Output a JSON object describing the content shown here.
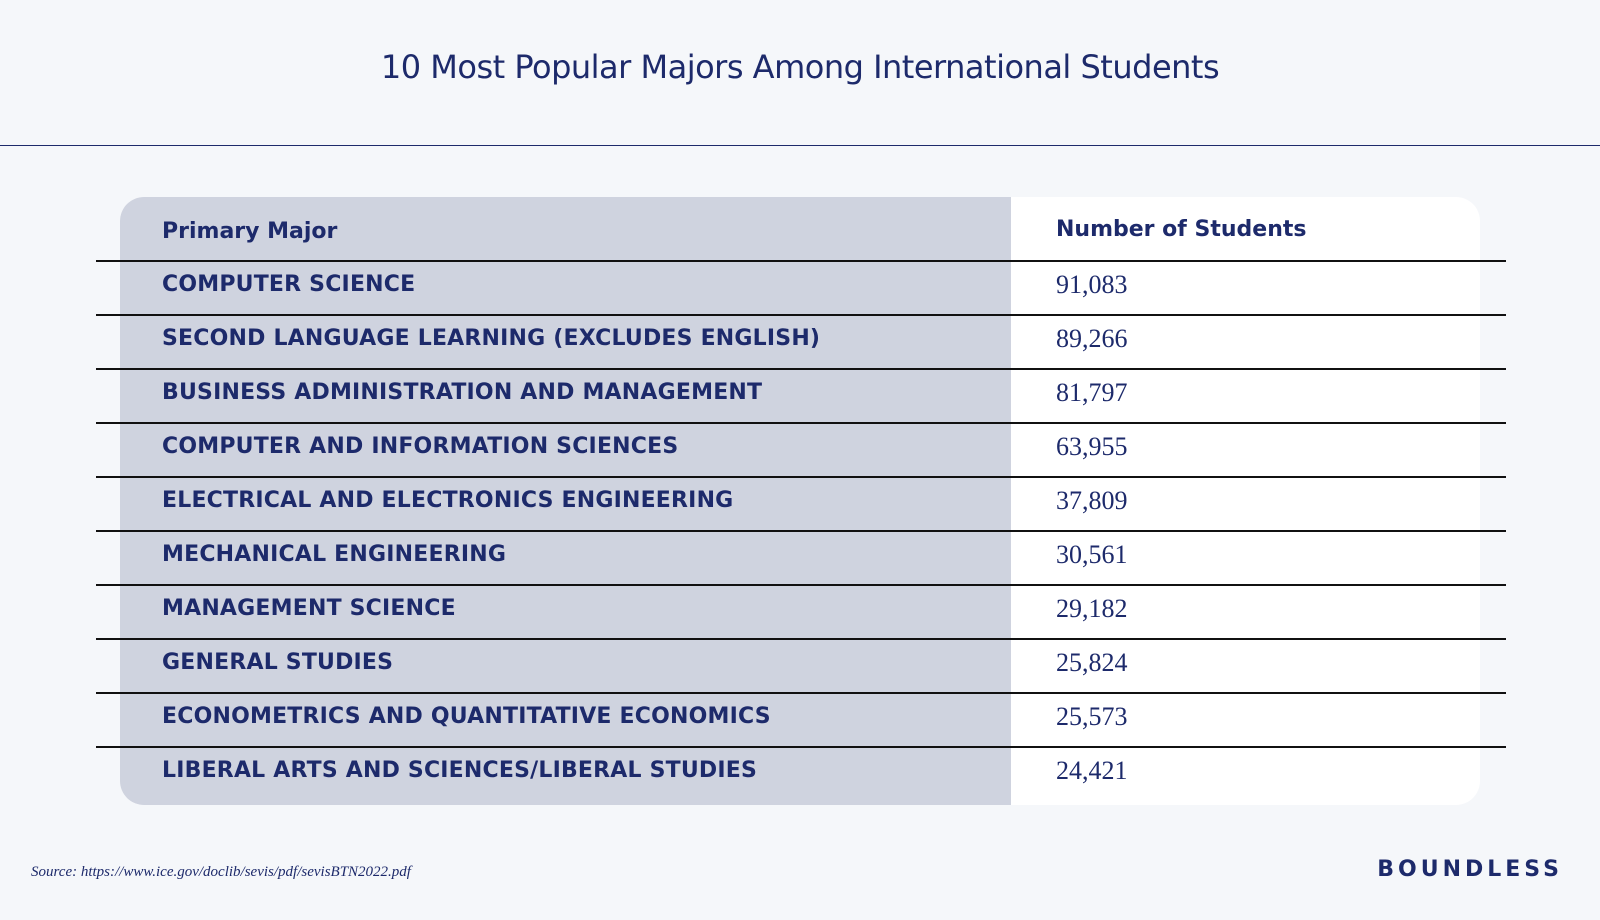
{
  "chart_data": {
    "type": "table",
    "title": "10 Most Popular Majors Among International Students",
    "columns": [
      "Primary Major",
      "Number of Students"
    ],
    "rows": [
      {
        "major": "COMPUTER SCIENCE",
        "students": "91,083"
      },
      {
        "major": "SECOND LANGUAGE LEARNING (EXCLUDES ENGLISH)",
        "students": "89,266"
      },
      {
        "major": "BUSINESS ADMINISTRATION AND MANAGEMENT",
        "students": "81,797"
      },
      {
        "major": "COMPUTER AND INFORMATION SCIENCES",
        "students": "63,955"
      },
      {
        "major": "ELECTRICAL AND ELECTRONICS ENGINEERING",
        "students": "37,809"
      },
      {
        "major": "MECHANICAL ENGINEERING",
        "students": "30,561"
      },
      {
        "major": "MANAGEMENT SCIENCE",
        "students": "29,182"
      },
      {
        "major": "GENERAL STUDIES",
        "students": "25,824"
      },
      {
        "major": "ECONOMETRICS AND QUANTITATIVE ECONOMICS",
        "students": "25,573"
      },
      {
        "major": "LIBERAL ARTS AND SCIENCES/LIBERAL STUDIES",
        "students": "24,421"
      }
    ]
  },
  "footer": {
    "source": "Source: https://www.ice.gov/doclib/sevis/pdf/sevisBTN2022.pdf",
    "brand": "BOUNDLESS"
  },
  "colors": {
    "text": "#1d2a6b",
    "left_column": "#cfd3df",
    "right_column": "#ffffff",
    "page_background": "#f5f7fa"
  }
}
